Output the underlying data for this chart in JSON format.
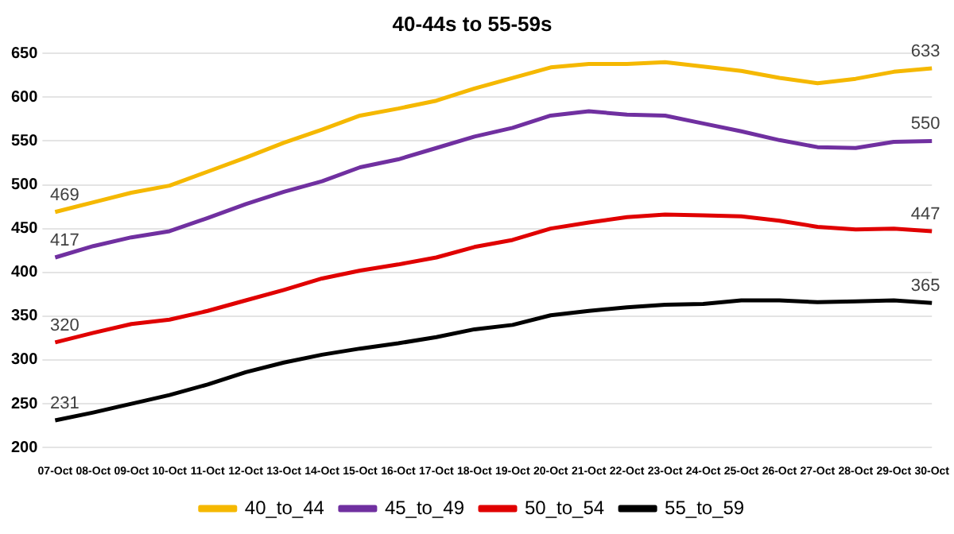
{
  "chart_data": {
    "type": "line",
    "title": "40-44s to 55-59s",
    "categories": [
      "07-Oct",
      "08-Oct",
      "09-Oct",
      "10-Oct",
      "11-Oct",
      "12-Oct",
      "13-Oct",
      "14-Oct",
      "15-Oct",
      "16-Oct",
      "17-Oct",
      "18-Oct",
      "19-Oct",
      "20-Oct",
      "21-Oct",
      "22-Oct",
      "23-Oct",
      "24-Oct",
      "25-Oct",
      "26-Oct",
      "27-Oct",
      "28-Oct",
      "29-Oct",
      "30-Oct"
    ],
    "series": [
      {
        "name": "40_to_44",
        "color": "#f5b800",
        "values": [
          469,
          480,
          491,
          499,
          515,
          531,
          548,
          563,
          579,
          587,
          596,
          610,
          622,
          634,
          638,
          638,
          640,
          635,
          630,
          622,
          616,
          621,
          629,
          633
        ],
        "value_labels": [
          "469",
          null,
          null,
          null,
          null,
          null,
          null,
          null,
          null,
          null,
          null,
          null,
          null,
          null,
          null,
          null,
          null,
          null,
          null,
          null,
          null,
          null,
          null,
          "633"
        ]
      },
      {
        "name": "45_to_49",
        "color": "#7030a0",
        "values": [
          417,
          430,
          440,
          447,
          462,
          478,
          492,
          504,
          520,
          529,
          542,
          555,
          565,
          579,
          584,
          580,
          579,
          570,
          561,
          551,
          543,
          542,
          549,
          550
        ],
        "value_labels": [
          "417",
          null,
          null,
          null,
          null,
          null,
          null,
          null,
          null,
          null,
          null,
          null,
          null,
          null,
          null,
          null,
          null,
          null,
          null,
          null,
          null,
          null,
          null,
          "550"
        ]
      },
      {
        "name": "50_to_54",
        "color": "#e00000",
        "values": [
          320,
          331,
          341,
          346,
          356,
          368,
          380,
          393,
          402,
          409,
          417,
          429,
          437,
          450,
          457,
          463,
          466,
          465,
          464,
          459,
          452,
          449,
          450,
          447
        ],
        "value_labels": [
          "320",
          null,
          null,
          null,
          null,
          null,
          null,
          null,
          null,
          null,
          null,
          null,
          null,
          null,
          null,
          null,
          null,
          null,
          null,
          null,
          null,
          null,
          null,
          "447"
        ]
      },
      {
        "name": "55_to_59",
        "color": "#000000",
        "values": [
          231,
          240,
          250,
          260,
          272,
          286,
          297,
          306,
          313,
          319,
          326,
          335,
          340,
          351,
          356,
          360,
          363,
          364,
          368,
          368,
          366,
          367,
          368,
          365
        ],
        "value_labels": [
          "231",
          null,
          null,
          null,
          null,
          null,
          null,
          null,
          null,
          null,
          null,
          null,
          null,
          null,
          null,
          null,
          null,
          null,
          null,
          null,
          null,
          null,
          null,
          "365"
        ]
      }
    ],
    "ylim": [
      200,
      650
    ],
    "yticks": [
      200,
      250,
      300,
      350,
      400,
      450,
      500,
      550,
      600,
      650
    ],
    "grid": "y",
    "legend": "bottom",
    "marker": "none",
    "line_style": "solid"
  }
}
